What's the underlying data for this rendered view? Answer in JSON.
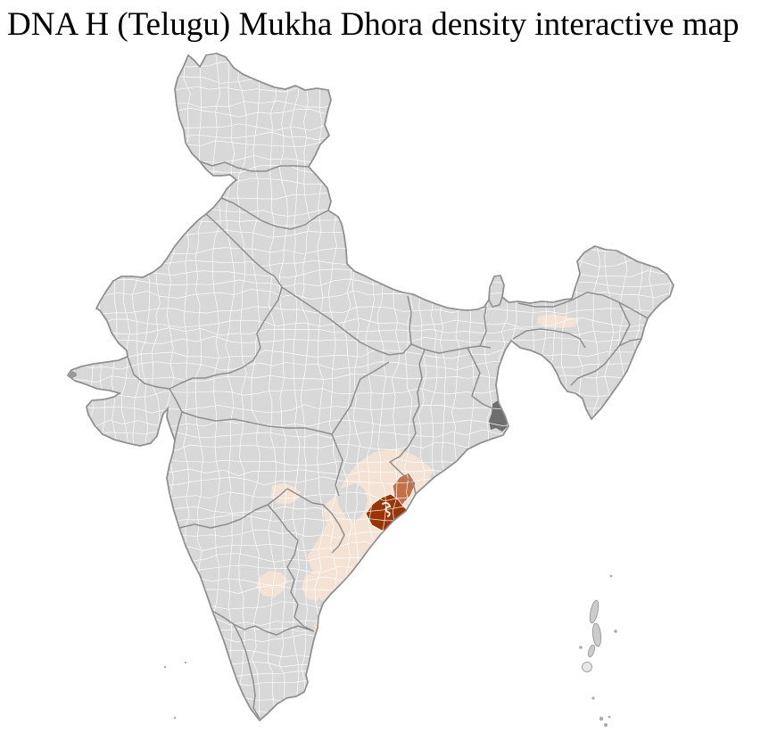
{
  "title": "DNA H (Telugu) Mukha Dhora density interactive map",
  "map": {
    "label": "India district choropleth map",
    "colors": {
      "sea": "#ffffff",
      "land": "#d8d8d8",
      "district_border": "#ffffff",
      "state_border": "#8a8a8a",
      "country_outline": "#8f8f8f",
      "density_high": "#993404",
      "density_medium": "#c4714a",
      "density_low": "#f4e2d4",
      "metro_district": "#6f6f6f",
      "island": "#cccccc",
      "islet": "#a9a9a9"
    },
    "regions": [
      {
        "id": "east-coast-belt",
        "density": "low"
      },
      {
        "id": "inland-deccan-1",
        "density": "low"
      },
      {
        "id": "inland-south-1",
        "density": "low"
      },
      {
        "id": "coastal-south-1",
        "density": "low"
      },
      {
        "id": "coastal-south-2",
        "density": "low"
      },
      {
        "id": "northeast-valley",
        "density": "low"
      },
      {
        "id": "coast-adjacent-district",
        "density": "medium"
      },
      {
        "id": "focal-coastal-district",
        "density": "high"
      },
      {
        "id": "delta-metro-district",
        "density": "other"
      }
    ]
  }
}
